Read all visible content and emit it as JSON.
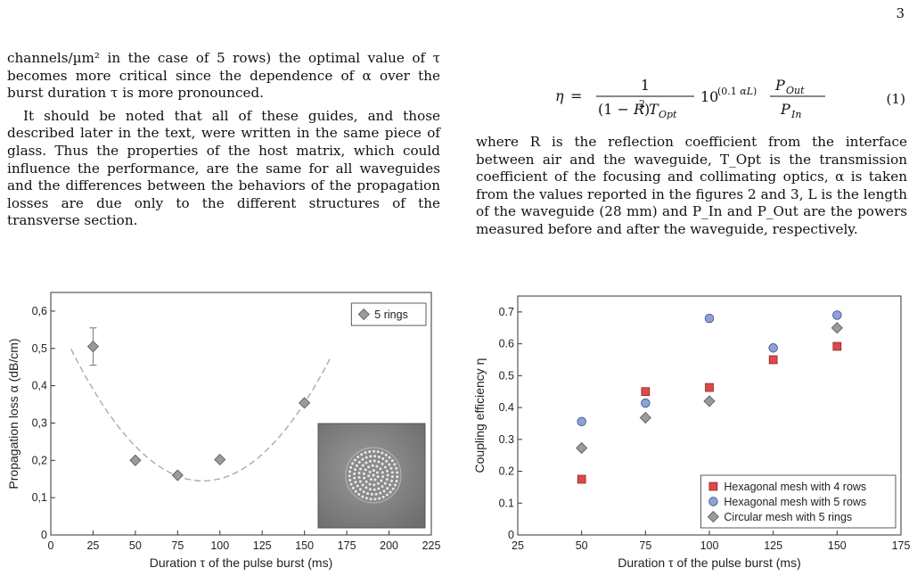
{
  "page": {
    "number": "3"
  },
  "left_column": {
    "para1": "channels/µm² in the case of 5 rows) the optimal value of τ becomes more critical since the dependence of α over the burst duration τ is more pronounced.",
    "para2": "It should be noted that all of these guides, and those described later in the text, were written in the same piece of glass. Thus the properties of the host matrix, which could influence the performance, are the same for all waveguides and the differences between the behaviors of the propagation losses are due only to the different structures of the transverse section."
  },
  "equation": {
    "number": "(1)"
  },
  "right_column": {
    "para1": "where R is the reflection coefficient from the interface between air and the waveguide, T_Opt is the transmission coefficient of the focusing and collimating optics, α is taken from the values reported in the figures 2 and 3, L is the length of the waveguide (28 mm) and P_In and P_Out are the powers measured before and after the waveguide, respectively."
  },
  "chart_data": [
    {
      "type": "scatter",
      "xlabel": "Duration τ of the pulse burst (ms)",
      "ylabel": "Propagation loss α (dB/cm)",
      "xlim": [
        0,
        225
      ],
      "ylim": [
        0,
        0.65
      ],
      "xticks": [
        "0",
        "25",
        "50",
        "75",
        "100",
        "125",
        "150",
        "175",
        "200",
        "225"
      ],
      "yticks": [
        "0",
        "0,1",
        "0,2",
        "0,3",
        "0,4",
        "0,5",
        "0,6"
      ],
      "legend_position": "top-right",
      "series": [
        {
          "name": "5 rings",
          "marker": "diamond",
          "color": "#9a9a9a",
          "points": [
            [
              25,
              0.505
            ],
            [
              50,
              0.2
            ],
            [
              75,
              0.16
            ],
            [
              100,
              0.202
            ],
            [
              150,
              0.354
            ]
          ],
          "error_bars": [
            [
              25,
              0.05
            ]
          ]
        }
      ],
      "fit_curve": {
        "style": "dashed",
        "color": "#aaaaaa",
        "vertex": [
          90,
          0.145
        ],
        "x_range": [
          12,
          165
        ]
      },
      "inset": {
        "description": "microscope image of circular waveguide cross-section"
      }
    },
    {
      "type": "scatter",
      "xlabel": "Duration τ of the pulse burst (ms)",
      "ylabel": "Coupling efficiency η",
      "xlim": [
        25,
        175
      ],
      "ylim": [
        0,
        0.75
      ],
      "xticks": [
        "25",
        "50",
        "75",
        "100",
        "125",
        "150",
        "175"
      ],
      "yticks": [
        "0",
        "0.1",
        "0.2",
        "0.3",
        "0.4",
        "0.5",
        "0.6",
        "0.7"
      ],
      "legend_position": "bottom-right",
      "series": [
        {
          "name": "Hexagonal mesh with 4 rows",
          "marker": "square",
          "color": "#e04848",
          "points": [
            [
              50,
              0.175
            ],
            [
              75,
              0.45
            ],
            [
              100,
              0.463
            ],
            [
              125,
              0.55
            ],
            [
              150,
              0.592
            ]
          ]
        },
        {
          "name": "Hexagonal mesh with 5 rows",
          "marker": "circle",
          "color": "#8ea2d8",
          "points": [
            [
              50,
              0.356
            ],
            [
              75,
              0.414
            ],
            [
              100,
              0.68
            ],
            [
              125,
              0.587
            ],
            [
              150,
              0.69
            ]
          ]
        },
        {
          "name": "Circular mesh with 5 rings",
          "marker": "diamond",
          "color": "#9a9a9a",
          "points": [
            [
              50,
              0.273
            ],
            [
              75,
              0.368
            ],
            [
              100,
              0.42
            ],
            [
              150,
              0.65
            ]
          ]
        }
      ]
    }
  ]
}
